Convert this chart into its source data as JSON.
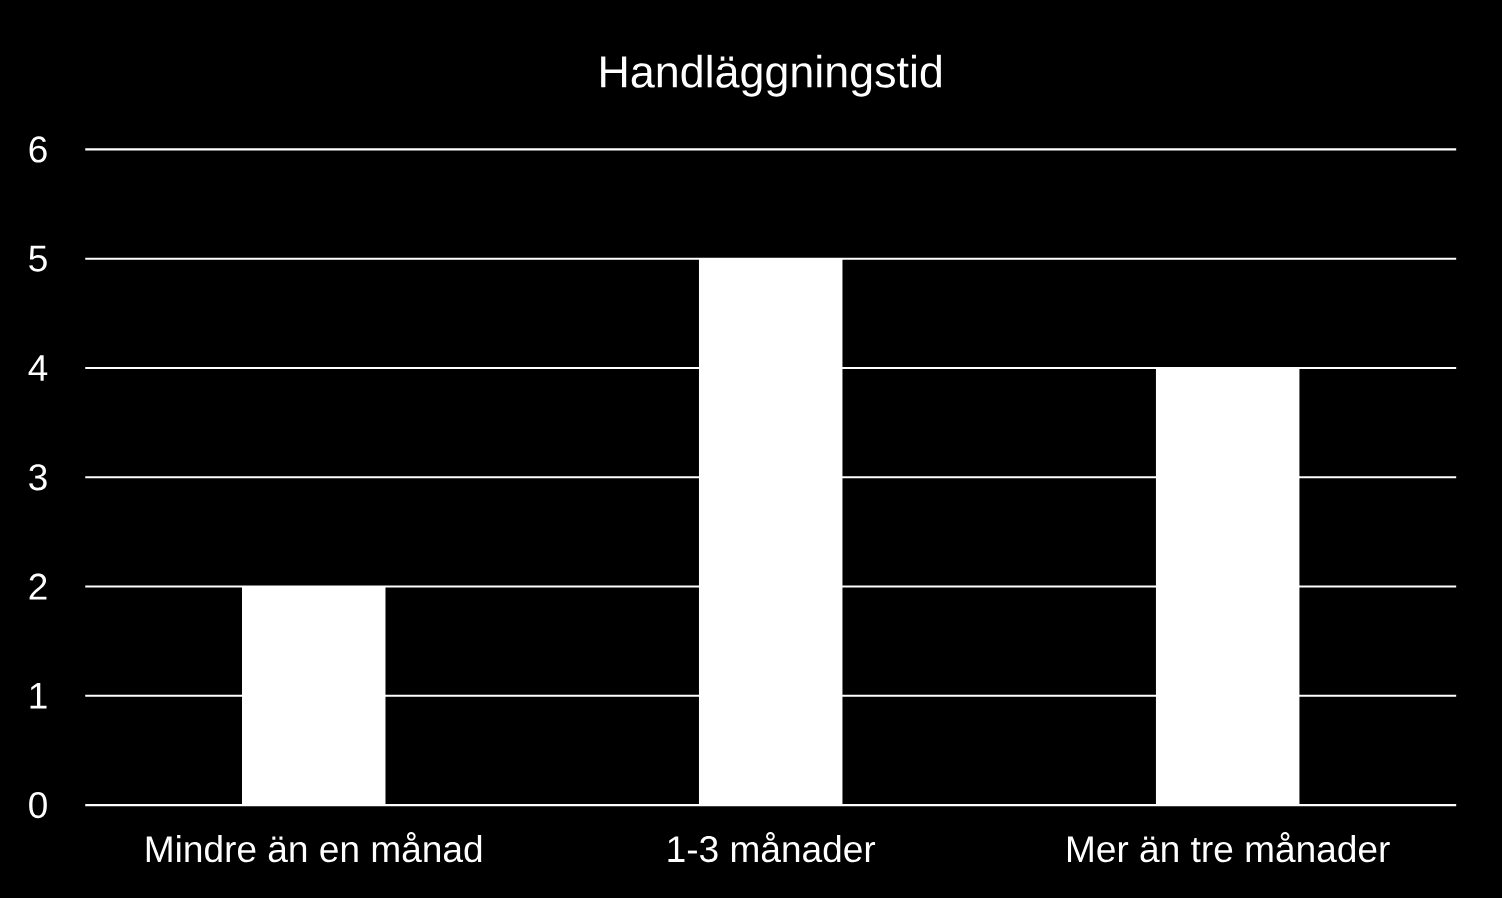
{
  "chart_data": {
    "type": "bar",
    "title": "Handläggningstid",
    "categories": [
      "Mindre än en månad",
      "1-3 månader",
      "Mer än tre månader"
    ],
    "values": [
      2,
      5,
      4
    ],
    "color": "#ffffff",
    "ylim": [
      0,
      6
    ],
    "yticks": [
      0,
      1,
      2,
      3,
      4,
      5,
      6
    ],
    "grid": "y",
    "legend": false
  }
}
